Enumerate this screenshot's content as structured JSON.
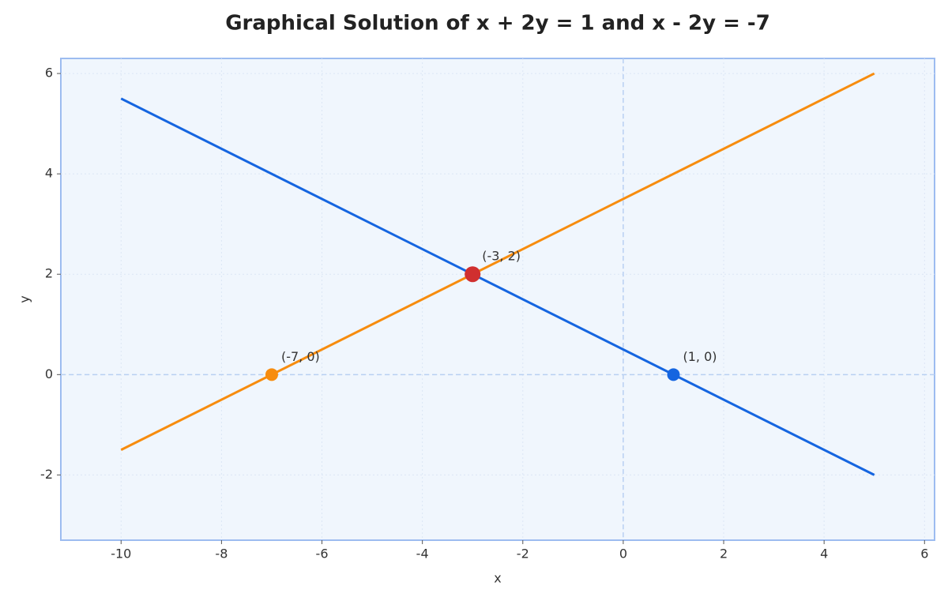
{
  "chart_data": {
    "type": "line",
    "title": "Graphical Solution of x + 2y = 1 and x - 2y = -7",
    "x_label": "x",
    "y_label": "y",
    "xlim": [
      -11.2,
      6.2
    ],
    "ylim": [
      -3.3,
      6.3
    ],
    "xticks": [
      -10,
      -8,
      -6,
      -4,
      -2,
      0,
      2,
      4,
      6
    ],
    "yticks": [
      -2,
      0,
      2,
      4,
      6
    ],
    "grid": true,
    "zero_lines": true,
    "series": [
      {
        "color": "#1565e0",
        "x": [
          -10,
          5
        ],
        "values": [
          5.5,
          -2
        ]
      },
      {
        "color": "#f78c0e",
        "x": [
          -10,
          5
        ],
        "values": [
          -1.5,
          6
        ]
      }
    ],
    "points": [
      {
        "x": -3,
        "y": 2,
        "color": "#d02f2f",
        "label": "(-3, 2)"
      },
      {
        "x": -7,
        "y": 0,
        "color": "#f78c0e",
        "label": "(-7, 0)"
      },
      {
        "x": 1,
        "y": 0,
        "color": "#1565e0",
        "label": "(1, 0)"
      }
    ]
  }
}
